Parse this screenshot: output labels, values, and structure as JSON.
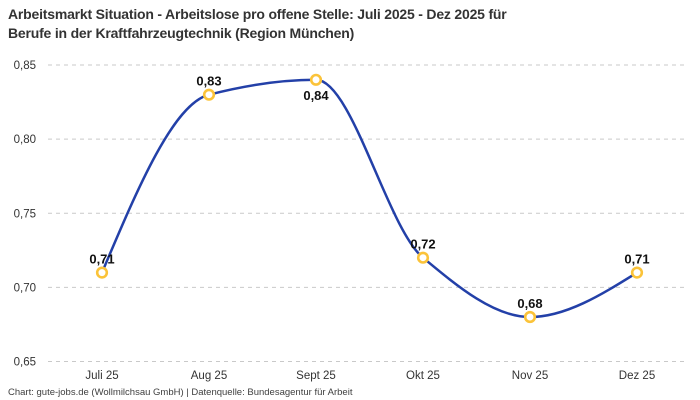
{
  "header": {
    "title": "Arbeitsmarkt Situation - Arbeitslose pro offene Stelle: Juli 2025 - Dez 2025 für\nBerufe in der Kraftfahrzeugtechnik (Region München)"
  },
  "footer": {
    "credit": "Chart: gute-jobs.de (Wollmilchsau GmbH) | Datenquelle: Bundesagentur für Arbeit"
  },
  "chart_data": {
    "type": "line",
    "title": "Arbeitsmarkt Situation - Arbeitslose pro offene Stelle: Juli 2025 - Dez 2025 für Berufe in der Kraftfahrzeugtechnik (Region München)",
    "categories": [
      "Juli 25",
      "Aug 25",
      "Sept 25",
      "Okt 25",
      "Nov 25",
      "Dez 25"
    ],
    "values": [
      0.71,
      0.83,
      0.84,
      0.72,
      0.68,
      0.71
    ],
    "value_labels": [
      "0,71",
      "0,83",
      "0,84",
      "0,72",
      "0,68",
      "0,71"
    ],
    "label_placements": [
      "above",
      "above",
      "below",
      "above",
      "above",
      "above"
    ],
    "series_name": "Arbeitslose pro offene Stelle",
    "xlabel": "",
    "ylabel": "",
    "ylim": [
      0.65,
      0.85
    ],
    "y_ticks": [
      {
        "value": 0.85,
        "label": "0,85"
      },
      {
        "value": 0.8,
        "label": "0,80"
      },
      {
        "value": 0.75,
        "label": "0,75"
      },
      {
        "value": 0.7,
        "label": "0,70"
      },
      {
        "value": 0.65,
        "label": "0,65"
      }
    ],
    "grid": "horizontal-dashed",
    "legend": "none",
    "curve": "smooth-monotone",
    "colors": {
      "line": "#2340a8",
      "marker_ring": "#fbc339",
      "marker_fill": "#ffffff",
      "grid": "#c9c9c9",
      "axis_text": "#333333",
      "data_label": "#111111",
      "title_text": "#333333",
      "footer_text": "#404040"
    }
  }
}
